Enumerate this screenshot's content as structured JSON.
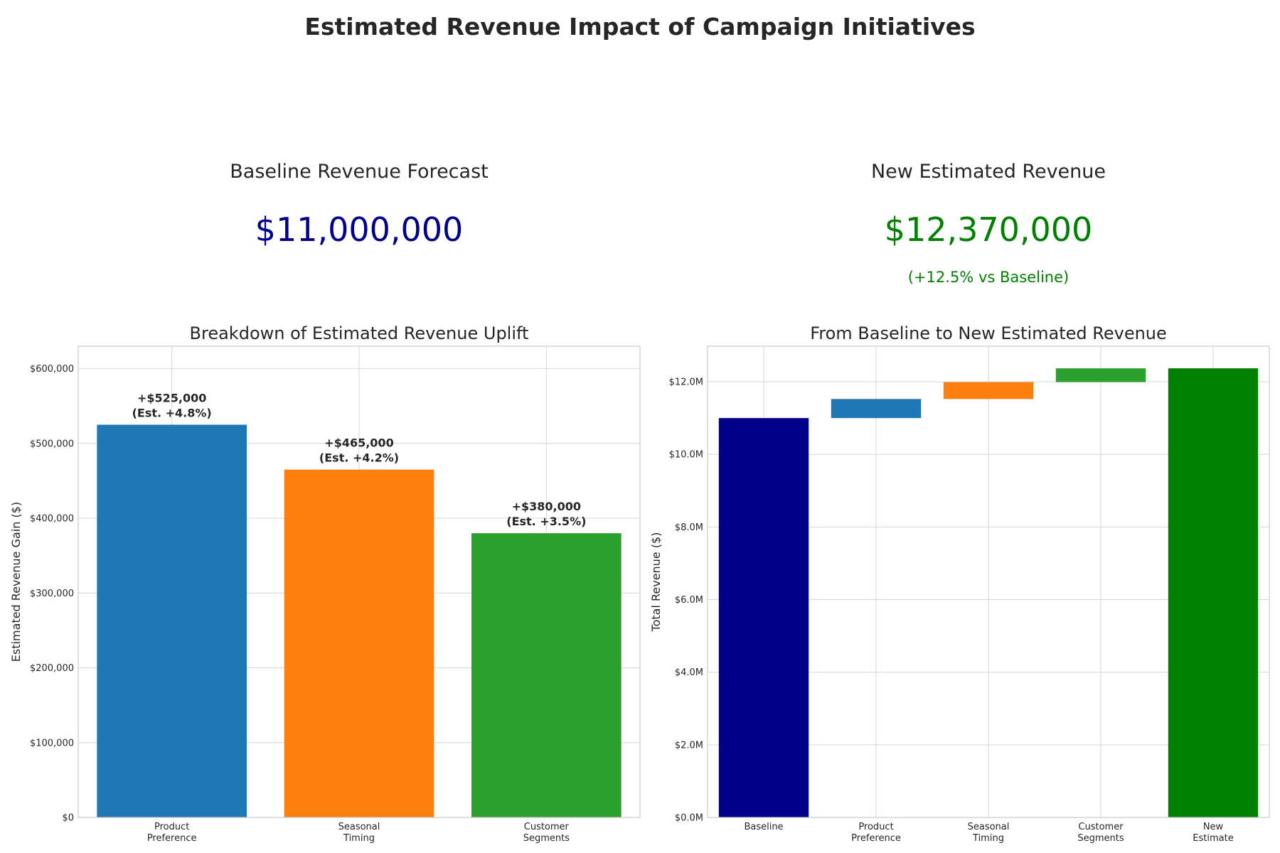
{
  "title": "Estimated Revenue Impact of Campaign Initiatives",
  "kpis": {
    "baseline": {
      "label": "Baseline Revenue Forecast",
      "value": "$11,000,000",
      "color": "#00008b"
    },
    "new": {
      "label": "New Estimated Revenue",
      "value": "$12,370,000",
      "sub": "(+12.5% vs Baseline)",
      "color": "#008000"
    }
  },
  "chart_data": [
    {
      "type": "bar",
      "title": "Breakdown of Estimated Revenue Uplift",
      "xlabel": "",
      "ylabel": "Estimated Revenue Gain ($)",
      "categories": [
        [
          "Product",
          "Preference"
        ],
        [
          "Seasonal",
          "Timing"
        ],
        [
          "Customer",
          "Segments"
        ]
      ],
      "values": [
        525000,
        465000,
        380000
      ],
      "data_labels": [
        [
          "+$525,000",
          "(Est. +4.8%)"
        ],
        [
          "+$465,000",
          "(Est. +4.2%)"
        ],
        [
          "+$380,000",
          "(Est. +3.5%)"
        ]
      ],
      "colors": [
        "#1f77b4",
        "#ff7f0e",
        "#2ca02c"
      ],
      "ylim": [
        0,
        630000
      ],
      "yticks": [
        0,
        100000,
        200000,
        300000,
        400000,
        500000,
        600000
      ],
      "ytick_labels": [
        "$0",
        "$100,000",
        "$200,000",
        "$300,000",
        "$400,000",
        "$500,000",
        "$600,000"
      ],
      "grid": true
    },
    {
      "type": "bar",
      "subtype": "waterfall",
      "title": "From Baseline to New Estimated Revenue",
      "xlabel": "",
      "ylabel": "Total Revenue ($)",
      "categories": [
        [
          "Baseline"
        ],
        [
          "Product",
          "Preference"
        ],
        [
          "Seasonal",
          "Timing"
        ],
        [
          "Customer",
          "Segments"
        ],
        [
          "New",
          "Estimate"
        ]
      ],
      "bases": [
        0,
        11000000,
        11525000,
        11990000,
        0
      ],
      "values": [
        11000000,
        525000,
        465000,
        380000,
        12370000
      ],
      "colors": [
        "#00008b",
        "#1f77b4",
        "#ff7f0e",
        "#2ca02c",
        "#008000"
      ],
      "ylim": [
        0,
        12980000
      ],
      "yticks": [
        0,
        2000000,
        4000000,
        6000000,
        8000000,
        10000000,
        12000000
      ],
      "ytick_labels": [
        "$0.0M",
        "$2.0M",
        "$4.0M",
        "$6.0M",
        "$8.0M",
        "$10.0M",
        "$12.0M"
      ],
      "grid": true
    }
  ]
}
